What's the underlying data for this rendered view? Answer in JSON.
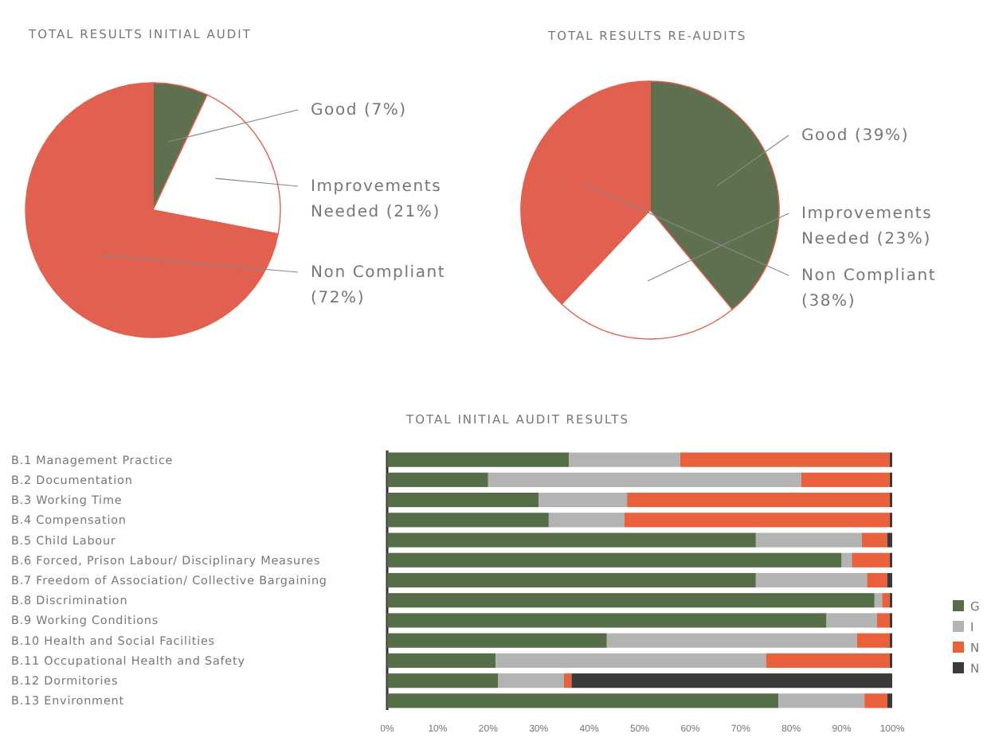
{
  "chart_data": [
    {
      "type": "pie",
      "title": "TOTAL RESULTS INITIAL AUDIT",
      "categories": [
        "Good",
        "Improvements Needed",
        "Non Compliant"
      ],
      "values": [
        7,
        21,
        72
      ],
      "colors": [
        "#5e7050",
        "#ffffff",
        "#e2604f"
      ],
      "value_labels": [
        "(7%)",
        "(21%)",
        "(72%)"
      ]
    },
    {
      "type": "pie",
      "title": "TOTAL RESULTS RE-AUDITS",
      "categories": [
        "Good",
        "Improvements Needed",
        "Non Compliant"
      ],
      "values": [
        39,
        23,
        38
      ],
      "colors": [
        "#5e7050",
        "#ffffff",
        "#e2604f"
      ],
      "value_labels": [
        "(39%)",
        "(23%)",
        "(38%)"
      ]
    },
    {
      "type": "bar",
      "title": "TOTAL INITIAL AUDIT RESULTS",
      "orientation": "horizontal",
      "stacked": true,
      "legend": "right",
      "categories": [
        "B.1 Management Practice",
        "B.2 Documentation",
        "B.3 Working Time",
        "B.4 Compensation",
        "B.5 Child Labour",
        "B.6 Forced, Prison Labour/ Disciplinary Measures",
        "B.7 Freedom of Association/ Collective Bargaining",
        "B.8 Discrimination",
        "B.9 Working Conditions",
        "B.10 Health and Social Facilities",
        "B.11 Occupational Health and Safety",
        "B.12 Dormitories",
        "B.13 Environment"
      ],
      "series": [
        {
          "name": "G",
          "color": "#566e48",
          "values": [
            36,
            20,
            30,
            32,
            73,
            90,
            73,
            96.5,
            87,
            43.5,
            21.5,
            22,
            77.5
          ]
        },
        {
          "name": "I",
          "color": "#b3b3b3",
          "values": [
            22,
            62,
            17.5,
            15,
            21,
            2,
            22,
            1.5,
            10,
            49.5,
            53.5,
            13,
            17
          ]
        },
        {
          "name": "N",
          "color": "#e8603c",
          "values": [
            41.5,
            17.5,
            52,
            52.5,
            5,
            7.5,
            4,
            1.5,
            2.5,
            6.5,
            24.5,
            1.5,
            4.5
          ]
        },
        {
          "name": "N",
          "color": "#3a3a3a",
          "values": [
            0.5,
            0.5,
            0.5,
            0.5,
            1,
            0.5,
            1,
            0.5,
            0.5,
            0.5,
            0.5,
            63.5,
            1
          ]
        }
      ],
      "xlim": [
        0,
        100
      ],
      "xticks": [
        {
          "value": 0,
          "label": "0%"
        },
        {
          "value": 10,
          "label": "10%"
        },
        {
          "value": 20,
          "label": "20%"
        },
        {
          "value": 30,
          "label": "30%"
        },
        {
          "value": 40,
          "label": "40%"
        },
        {
          "value": 50,
          "label": "50%"
        },
        {
          "value": 60,
          "label": "60%"
        },
        {
          "value": 70,
          "label": "70%"
        },
        {
          "value": 80,
          "label": "80%"
        },
        {
          "value": 90,
          "label": "90%"
        },
        {
          "value": 100,
          "label": "100%"
        }
      ]
    }
  ]
}
